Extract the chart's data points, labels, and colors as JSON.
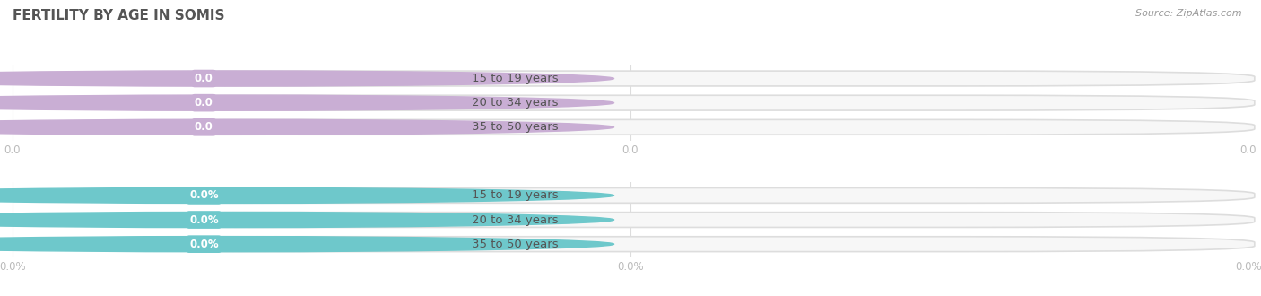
{
  "title": "FERTILITY BY AGE IN SOMIS",
  "source": "Source: ZipAtlas.com",
  "sections": [
    {
      "categories": [
        "15 to 19 years",
        "20 to 34 years",
        "35 to 50 years"
      ],
      "values": [
        0.0,
        0.0,
        0.0
      ],
      "bar_color": "#c9aed4",
      "track_color": "#eeebf0",
      "tick_labels": [
        "0.0",
        "0.0",
        "0.0"
      ],
      "x_tick_labels": [
        "0.0",
        "0.0",
        "0.0"
      ]
    },
    {
      "categories": [
        "15 to 19 years",
        "20 to 34 years",
        "35 to 50 years"
      ],
      "values": [
        0.0,
        0.0,
        0.0
      ],
      "bar_color": "#6ec8cb",
      "track_color": "#e5f4f5",
      "tick_labels": [
        "0.0%",
        "0.0%",
        "0.0%"
      ],
      "x_tick_labels": [
        "0.0%",
        "0.0%",
        "0.0%"
      ]
    }
  ],
  "background_color": "#ffffff",
  "title_color": "#555555",
  "tick_color": "#bbbbbb",
  "label_text_color": "#555555",
  "source_color": "#999999"
}
